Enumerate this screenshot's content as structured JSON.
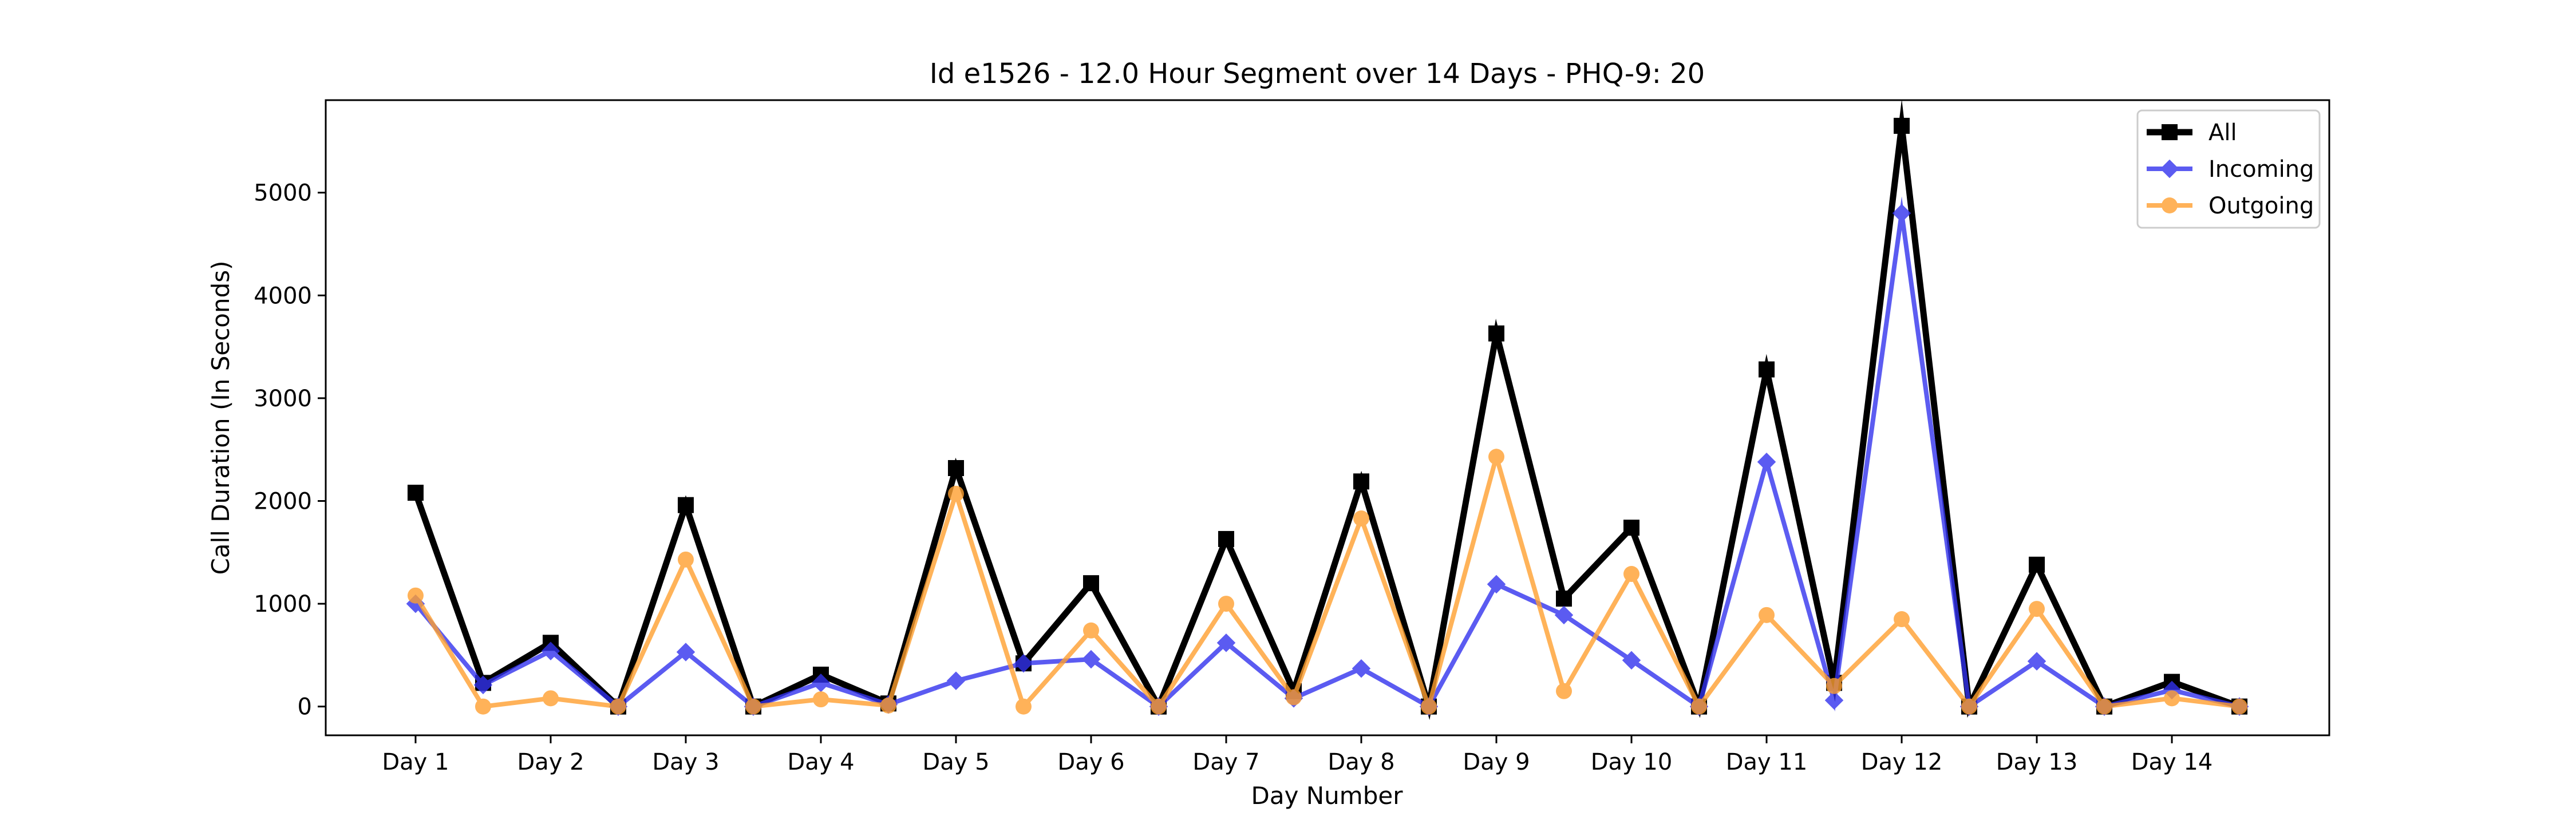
{
  "chart_data": {
    "type": "line",
    "title": "Id e1526 - 12.0 Hour Segment over 14 Days - PHQ-9: 20",
    "xlabel": "Day Number",
    "ylabel": "Call Duration (In Seconds)",
    "ylim": [
      -280,
      5900
    ],
    "yticks": [
      0,
      1000,
      2000,
      3000,
      4000,
      5000
    ],
    "xticks": [
      "Day 1",
      "Day 2",
      "Day 3",
      "Day 4",
      "Day 5",
      "Day 6",
      "Day 7",
      "Day 8",
      "Day 9",
      "Day 10",
      "Day 11",
      "Day 12",
      "Day 13",
      "Day 14"
    ],
    "x": [
      1,
      1.5,
      2,
      2.5,
      3,
      3.5,
      4,
      4.5,
      5,
      5.5,
      6,
      6.5,
      7,
      7.5,
      8,
      8.5,
      9,
      9.5,
      10,
      10.5,
      11,
      11.5,
      12,
      12.5,
      13,
      13.5,
      14,
      14.5
    ],
    "grid": false,
    "legend": "top-right",
    "series": [
      {
        "name": "All",
        "color": "#000000",
        "marker": "square",
        "values": [
          2080,
          230,
          620,
          0,
          1960,
          0,
          310,
          30,
          2320,
          420,
          1200,
          0,
          1630,
          150,
          2190,
          0,
          3630,
          1050,
          1740,
          0,
          3280,
          230,
          5650,
          0,
          1380,
          0,
          240,
          0
        ]
      },
      {
        "name": "Incoming",
        "color": "#3333ee",
        "marker": "diamond",
        "values": [
          1000,
          210,
          540,
          0,
          530,
          0,
          230,
          20,
          250,
          420,
          460,
          0,
          620,
          80,
          370,
          0,
          1190,
          890,
          450,
          0,
          2380,
          60,
          4800,
          0,
          440,
          0,
          160,
          0
        ]
      },
      {
        "name": "Outgoing",
        "color": "#ffa030",
        "marker": "circle",
        "values": [
          1080,
          0,
          80,
          0,
          1430,
          0,
          70,
          10,
          2070,
          0,
          740,
          0,
          1000,
          90,
          1830,
          0,
          2430,
          150,
          1290,
          0,
          890,
          200,
          850,
          0,
          950,
          0,
          80,
          0
        ]
      }
    ]
  }
}
